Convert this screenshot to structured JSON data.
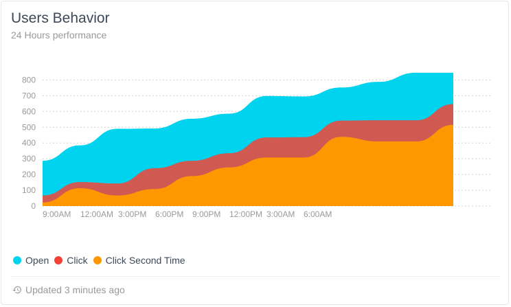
{
  "card": {
    "title": "Users Behavior",
    "subtitle": "24 Hours performance",
    "footer_text": "Updated 3 minutes ago",
    "footer_icon": "history-icon"
  },
  "legend": [
    {
      "label": "Open",
      "color": "#00d3ee"
    },
    {
      "label": "Click",
      "color": "#f44336"
    },
    {
      "label": "Click Second Time",
      "color": "#ff9800"
    }
  ],
  "chart_data": {
    "type": "area",
    "title": "Users Behavior",
    "subtitle": "24 Hours performance",
    "x_tick_labels": [
      "9:00AM",
      "12:00AM",
      "3:00PM",
      "6:00PM",
      "9:00PM",
      "12:00PM",
      "3:00AM",
      "6:00AM"
    ],
    "y_ticks": [
      0,
      100,
      200,
      300,
      400,
      500,
      600,
      700,
      800
    ],
    "ylim": [
      0,
      860
    ],
    "grid": true,
    "legend_position": "bottom-left",
    "series": [
      {
        "name": "Open",
        "color": "#00d3ee",
        "values": [
          287,
          385,
          490,
          492,
          554,
          586,
          698,
          695,
          752,
          788,
          846,
          846
        ]
      },
      {
        "name": "Click",
        "color": "#f44336",
        "values": [
          67,
          152,
          143,
          240,
          287,
          335,
          435,
          437,
          542,
          544,
          544,
          647
        ]
      },
      {
        "name": "Click Second Time",
        "color": "#ff9800",
        "values": [
          23,
          113,
          67,
          108,
          190,
          245,
          308,
          308,
          439,
          410,
          410,
          515
        ]
      }
    ]
  }
}
